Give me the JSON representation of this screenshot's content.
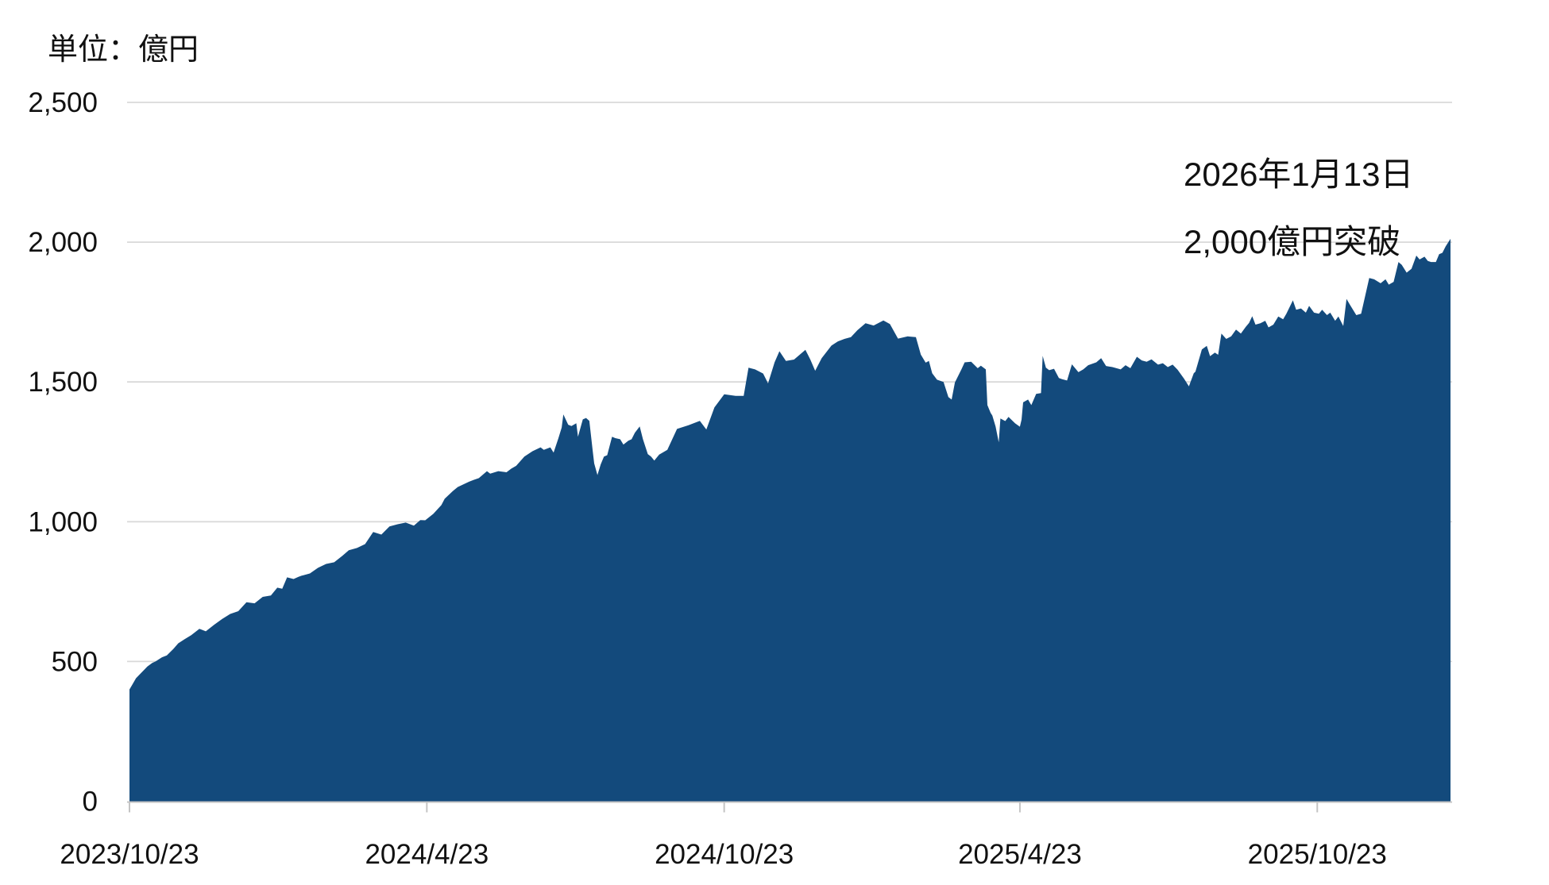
{
  "page": {
    "background": "#ffffff"
  },
  "header": {
    "unit_label": "単位：億円"
  },
  "annotation": {
    "line1": "2026年1月13日",
    "line2": "2,000億円突破"
  },
  "colors": {
    "area_fill": "#134a7c",
    "gridline": "#d9d9d9",
    "axis_line": "#c4c4c4",
    "text": "#111111"
  },
  "chart_data": {
    "type": "area",
    "title": "",
    "unit": "億円",
    "legend": "none",
    "grid": "horizontal",
    "x_axis": {
      "start_date": "2023/10/23",
      "end_date": "2026/1/13",
      "tick_labels": [
        "2023/10/23",
        "2024/4/23",
        "2024/10/23",
        "2025/4/23",
        "2025/10/23"
      ],
      "tick_days": [
        0,
        183,
        366,
        548,
        731
      ],
      "total_days": 813
    },
    "y_axis": {
      "tick_labels": [
        "0",
        "500",
        "1,000",
        "1,500",
        "2,000",
        "2,500"
      ],
      "tick_values": [
        0,
        500,
        1000,
        1500,
        2000,
        2500
      ],
      "range": [
        0,
        2500
      ]
    },
    "points": [
      [
        0,
        400
      ],
      [
        2,
        420
      ],
      [
        4,
        440
      ],
      [
        6,
        452
      ],
      [
        9,
        470
      ],
      [
        11,
        482
      ],
      [
        14,
        495
      ],
      [
        16,
        500
      ],
      [
        20,
        515
      ],
      [
        23,
        522
      ],
      [
        27,
        545
      ],
      [
        30,
        565
      ],
      [
        34,
        580
      ],
      [
        38,
        594
      ],
      [
        43,
        617
      ],
      [
        47,
        608
      ],
      [
        52,
        631
      ],
      [
        57,
        652
      ],
      [
        62,
        670
      ],
      [
        67,
        680
      ],
      [
        72,
        712
      ],
      [
        77,
        708
      ],
      [
        82,
        731
      ],
      [
        87,
        736
      ],
      [
        91,
        764
      ],
      [
        94,
        760
      ],
      [
        97,
        801
      ],
      [
        101,
        795
      ],
      [
        104,
        803
      ],
      [
        106,
        807
      ],
      [
        111,
        815
      ],
      [
        116,
        835
      ],
      [
        121,
        849
      ],
      [
        126,
        855
      ],
      [
        131,
        878
      ],
      [
        135,
        898
      ],
      [
        140,
        906
      ],
      [
        145,
        920
      ],
      [
        150,
        963
      ],
      [
        155,
        954
      ],
      [
        160,
        983
      ],
      [
        165,
        991
      ],
      [
        170,
        997
      ],
      [
        175,
        986
      ],
      [
        179,
        1006
      ],
      [
        182,
        1005
      ],
      [
        187,
        1028
      ],
      [
        192,
        1060
      ],
      [
        194,
        1082
      ],
      [
        199,
        1110
      ],
      [
        202,
        1124
      ],
      [
        206,
        1135
      ],
      [
        209,
        1143
      ],
      [
        212,
        1150
      ],
      [
        215,
        1156
      ],
      [
        220,
        1181
      ],
      [
        222,
        1172
      ],
      [
        227,
        1181
      ],
      [
        232,
        1177
      ],
      [
        235,
        1190
      ],
      [
        238,
        1200
      ],
      [
        243,
        1233
      ],
      [
        248,
        1252
      ],
      [
        253,
        1266
      ],
      [
        255,
        1257
      ],
      [
        259,
        1266
      ],
      [
        261,
        1247
      ],
      [
        264,
        1299
      ],
      [
        266,
        1337
      ],
      [
        267,
        1384
      ],
      [
        270,
        1347
      ],
      [
        272,
        1342
      ],
      [
        275,
        1352
      ],
      [
        276,
        1304
      ],
      [
        279,
        1366
      ],
      [
        281,
        1371
      ],
      [
        283,
        1361
      ],
      [
        285,
        1257
      ],
      [
        286,
        1209
      ],
      [
        288,
        1167
      ],
      [
        290,
        1205
      ],
      [
        292,
        1233
      ],
      [
        294,
        1238
      ],
      [
        297,
        1304
      ],
      [
        299,
        1299
      ],
      [
        302,
        1295
      ],
      [
        304,
        1276
      ],
      [
        307,
        1290
      ],
      [
        309,
        1295
      ],
      [
        311,
        1318
      ],
      [
        314,
        1341
      ],
      [
        316,
        1295
      ],
      [
        319,
        1242
      ],
      [
        321,
        1233
      ],
      [
        323,
        1219
      ],
      [
        326,
        1240
      ],
      [
        331,
        1257
      ],
      [
        337,
        1332
      ],
      [
        344,
        1345
      ],
      [
        351,
        1361
      ],
      [
        355,
        1330
      ],
      [
        360,
        1409
      ],
      [
        366,
        1456
      ],
      [
        373,
        1450
      ],
      [
        378,
        1450
      ],
      [
        381,
        1551
      ],
      [
        385,
        1545
      ],
      [
        390,
        1530
      ],
      [
        393,
        1495
      ],
      [
        397,
        1570
      ],
      [
        400,
        1610
      ],
      [
        404,
        1575
      ],
      [
        409,
        1580
      ],
      [
        416,
        1615
      ],
      [
        419,
        1580
      ],
      [
        422,
        1540
      ],
      [
        426,
        1585
      ],
      [
        432,
        1630
      ],
      [
        436,
        1645
      ],
      [
        440,
        1654
      ],
      [
        444,
        1660
      ],
      [
        448,
        1685
      ],
      [
        453,
        1710
      ],
      [
        458,
        1702
      ],
      [
        464,
        1720
      ],
      [
        468,
        1707
      ],
      [
        473,
        1655
      ],
      [
        479,
        1663
      ],
      [
        484,
        1660
      ],
      [
        487,
        1598
      ],
      [
        490,
        1569
      ],
      [
        492,
        1575
      ],
      [
        494,
        1531
      ],
      [
        497,
        1508
      ],
      [
        501,
        1500
      ],
      [
        504,
        1446
      ],
      [
        506,
        1437
      ],
      [
        508,
        1498
      ],
      [
        512,
        1545
      ],
      [
        514,
        1570
      ],
      [
        518,
        1572
      ],
      [
        522,
        1549
      ],
      [
        524,
        1558
      ],
      [
        527,
        1545
      ],
      [
        528,
        1417
      ],
      [
        530,
        1389
      ],
      [
        531,
        1380
      ],
      [
        533,
        1341
      ],
      [
        535,
        1284
      ],
      [
        536,
        1369
      ],
      [
        539,
        1360
      ],
      [
        541,
        1375
      ],
      [
        545,
        1352
      ],
      [
        548,
        1340
      ],
      [
        549,
        1365
      ],
      [
        550,
        1427
      ],
      [
        553,
        1437
      ],
      [
        555,
        1417
      ],
      [
        558,
        1457
      ],
      [
        561,
        1460
      ],
      [
        562,
        1593
      ],
      [
        564,
        1551
      ],
      [
        566,
        1542
      ],
      [
        569,
        1547
      ],
      [
        572,
        1514
      ],
      [
        574,
        1510
      ],
      [
        577,
        1505
      ],
      [
        580,
        1563
      ],
      [
        584,
        1535
      ],
      [
        587,
        1545
      ],
      [
        590,
        1560
      ],
      [
        595,
        1570
      ],
      [
        598,
        1585
      ],
      [
        601,
        1557
      ],
      [
        605,
        1553
      ],
      [
        610,
        1545
      ],
      [
        613,
        1560
      ],
      [
        616,
        1549
      ],
      [
        620,
        1590
      ],
      [
        623,
        1577
      ],
      [
        626,
        1572
      ],
      [
        629,
        1581
      ],
      [
        633,
        1562
      ],
      [
        636,
        1567
      ],
      [
        639,
        1553
      ],
      [
        642,
        1562
      ],
      [
        645,
        1544
      ],
      [
        649,
        1512
      ],
      [
        652,
        1484
      ],
      [
        655,
        1531
      ],
      [
        656,
        1537
      ],
      [
        660,
        1616
      ],
      [
        663,
        1629
      ],
      [
        665,
        1592
      ],
      [
        668,
        1605
      ],
      [
        670,
        1597
      ],
      [
        672,
        1673
      ],
      [
        675,
        1654
      ],
      [
        678,
        1663
      ],
      [
        681,
        1687
      ],
      [
        684,
        1673
      ],
      [
        687,
        1697
      ],
      [
        689,
        1711
      ],
      [
        691,
        1735
      ],
      [
        693,
        1705
      ],
      [
        696,
        1710
      ],
      [
        699,
        1719
      ],
      [
        701,
        1695
      ],
      [
        704,
        1705
      ],
      [
        707,
        1734
      ],
      [
        710,
        1724
      ],
      [
        712,
        1744
      ],
      [
        716,
        1792
      ],
      [
        718,
        1758
      ],
      [
        721,
        1763
      ],
      [
        724,
        1748
      ],
      [
        726,
        1772
      ],
      [
        729,
        1748
      ],
      [
        732,
        1744
      ],
      [
        734,
        1758
      ],
      [
        737,
        1739
      ],
      [
        739,
        1748
      ],
      [
        742,
        1719
      ],
      [
        744,
        1734
      ],
      [
        747,
        1700
      ],
      [
        749,
        1797
      ],
      [
        751,
        1777
      ],
      [
        755,
        1739
      ],
      [
        758,
        1744
      ],
      [
        763,
        1872
      ],
      [
        766,
        1867
      ],
      [
        770,
        1853
      ],
      [
        773,
        1867
      ],
      [
        775,
        1848
      ],
      [
        778,
        1858
      ],
      [
        781,
        1929
      ],
      [
        783,
        1919
      ],
      [
        786,
        1891
      ],
      [
        789,
        1905
      ],
      [
        792,
        1952
      ],
      [
        794,
        1938
      ],
      [
        797,
        1948
      ],
      [
        799,
        1933
      ],
      [
        801,
        1929
      ],
      [
        804,
        1929
      ],
      [
        806,
        1957
      ],
      [
        808,
        1962
      ],
      [
        810,
        1985
      ],
      [
        813,
        2012
      ]
    ]
  }
}
